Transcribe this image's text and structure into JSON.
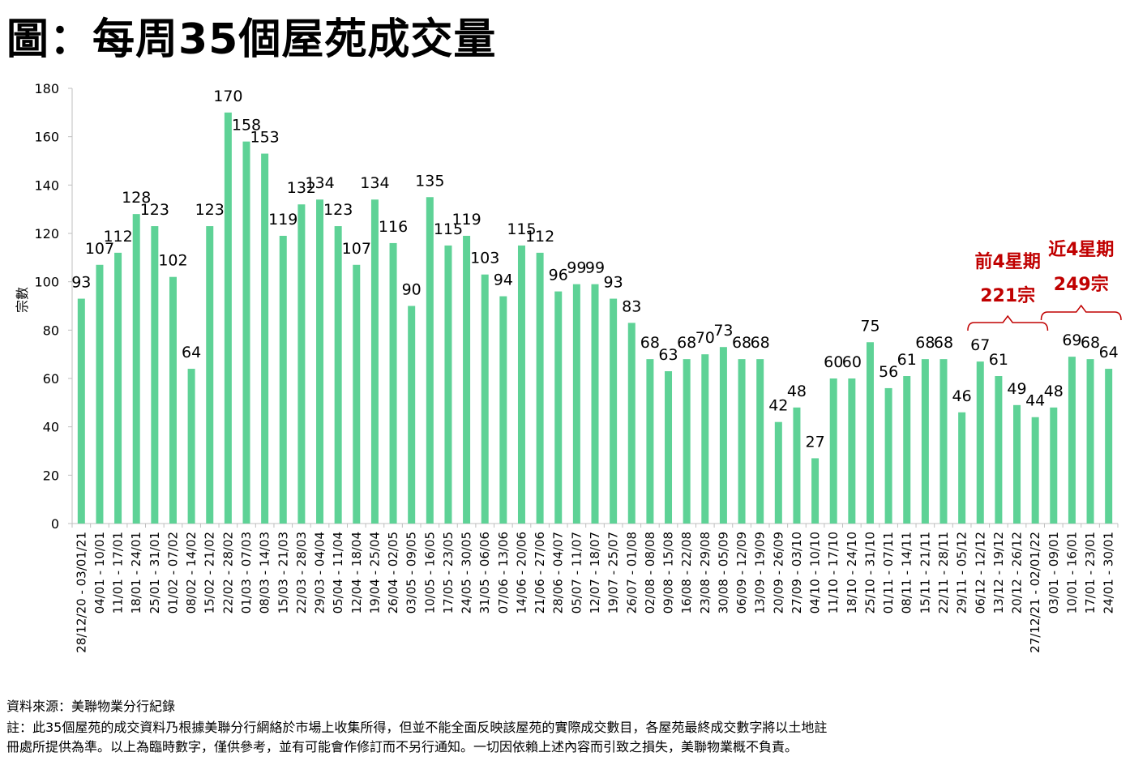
{
  "title": "圖：每周35個屋苑成交量",
  "source": "資料來源：美聯物業分行紀錄",
  "note_line1": "註：此35個屋苑的成交資料乃根據美聯分行網絡於市場上收集所得，但並不能全面反映該屋苑的實際成交數目，各屋苑最終成交數字將以土地註",
  "note_line2": "冊處所提供為準。以上為臨時數字，僅供參考，並有可能會作修訂而不另行通知。一切因依賴上述內容而引致之損失，美聯物業概不負責。",
  "colors": {
    "bar": "#5ed296",
    "annotation": "#c00000",
    "axis": "#bfbfbf"
  },
  "chart_data": {
    "type": "bar",
    "title": "每周35個屋苑成交量",
    "ylabel": "宗數",
    "xlabel": "",
    "ylim": [
      0,
      180
    ],
    "yticks": [
      0,
      20,
      40,
      60,
      80,
      100,
      120,
      140,
      160,
      180
    ],
    "grid": false,
    "categories": [
      "28/12/20 - 03/01/21",
      "04/01 - 10/01",
      "11/01 - 17/01",
      "18/01 - 24/01",
      "25/01 - 31/01",
      "01/02 - 07/02",
      "08/02 - 14/02",
      "15/02 - 21/02",
      "22/02 - 28/02",
      "01/03 - 07/03",
      "08/03 - 14/03",
      "15/03 - 21/03",
      "22/03 - 28/03",
      "29/03 - 04/04",
      "05/04 - 11/04",
      "12/04 - 18/04",
      "19/04 - 25/04",
      "26/04 - 02/05",
      "03/05 - 09/05",
      "10/05 - 16/05",
      "17/05 - 23/05",
      "24/05 - 30/05",
      "31/05 - 06/06",
      "07/06 - 13/06",
      "14/06 - 20/06",
      "21/06 - 27/06",
      "28/06 - 04/07",
      "05/07 - 11/07",
      "12/07 - 18/07",
      "19/07 - 25/07",
      "26/07 - 01/08",
      "02/08 - 08/08",
      "09/08 - 15/08",
      "16/08 - 22/08",
      "23/08 - 29/08",
      "30/08 - 05/09",
      "06/09 - 12/09",
      "13/09 - 19/09",
      "20/09 - 26/09",
      "27/09 - 03/10",
      "04/10 - 10/10",
      "11/10 - 17/10",
      "18/10 - 24/10",
      "25/10 - 31/10",
      "01/11 - 07/11",
      "08/11 - 14/11",
      "15/11 - 21/11",
      "22/11 - 28/11",
      "29/11 - 05/12",
      "06/12 - 12/12",
      "13/12 - 19/12",
      "20/12 - 26/12",
      "27/12/21 - 02/01/22",
      "03/01 - 09/01",
      "10/01 - 16/01",
      "17/01 - 23/01",
      "24/01 - 30/01"
    ],
    "values": [
      93,
      107,
      112,
      128,
      123,
      102,
      64,
      123,
      170,
      158,
      153,
      119,
      132,
      134,
      123,
      107,
      134,
      116,
      90,
      135,
      115,
      119,
      103,
      94,
      115,
      112,
      96,
      99,
      99,
      93,
      83,
      68,
      63,
      68,
      70,
      73,
      68,
      68,
      42,
      48,
      27,
      60,
      60,
      75,
      56,
      61,
      68,
      68,
      46,
      67,
      61,
      49,
      44,
      48,
      69,
      68,
      64
    ],
    "annotations": [
      {
        "line1": "前4星期",
        "line2": "221宗",
        "from_index": 49,
        "to_index": 52
      },
      {
        "line1": "近4星期",
        "line2": "249宗",
        "from_index": 53,
        "to_index": 56
      }
    ]
  }
}
